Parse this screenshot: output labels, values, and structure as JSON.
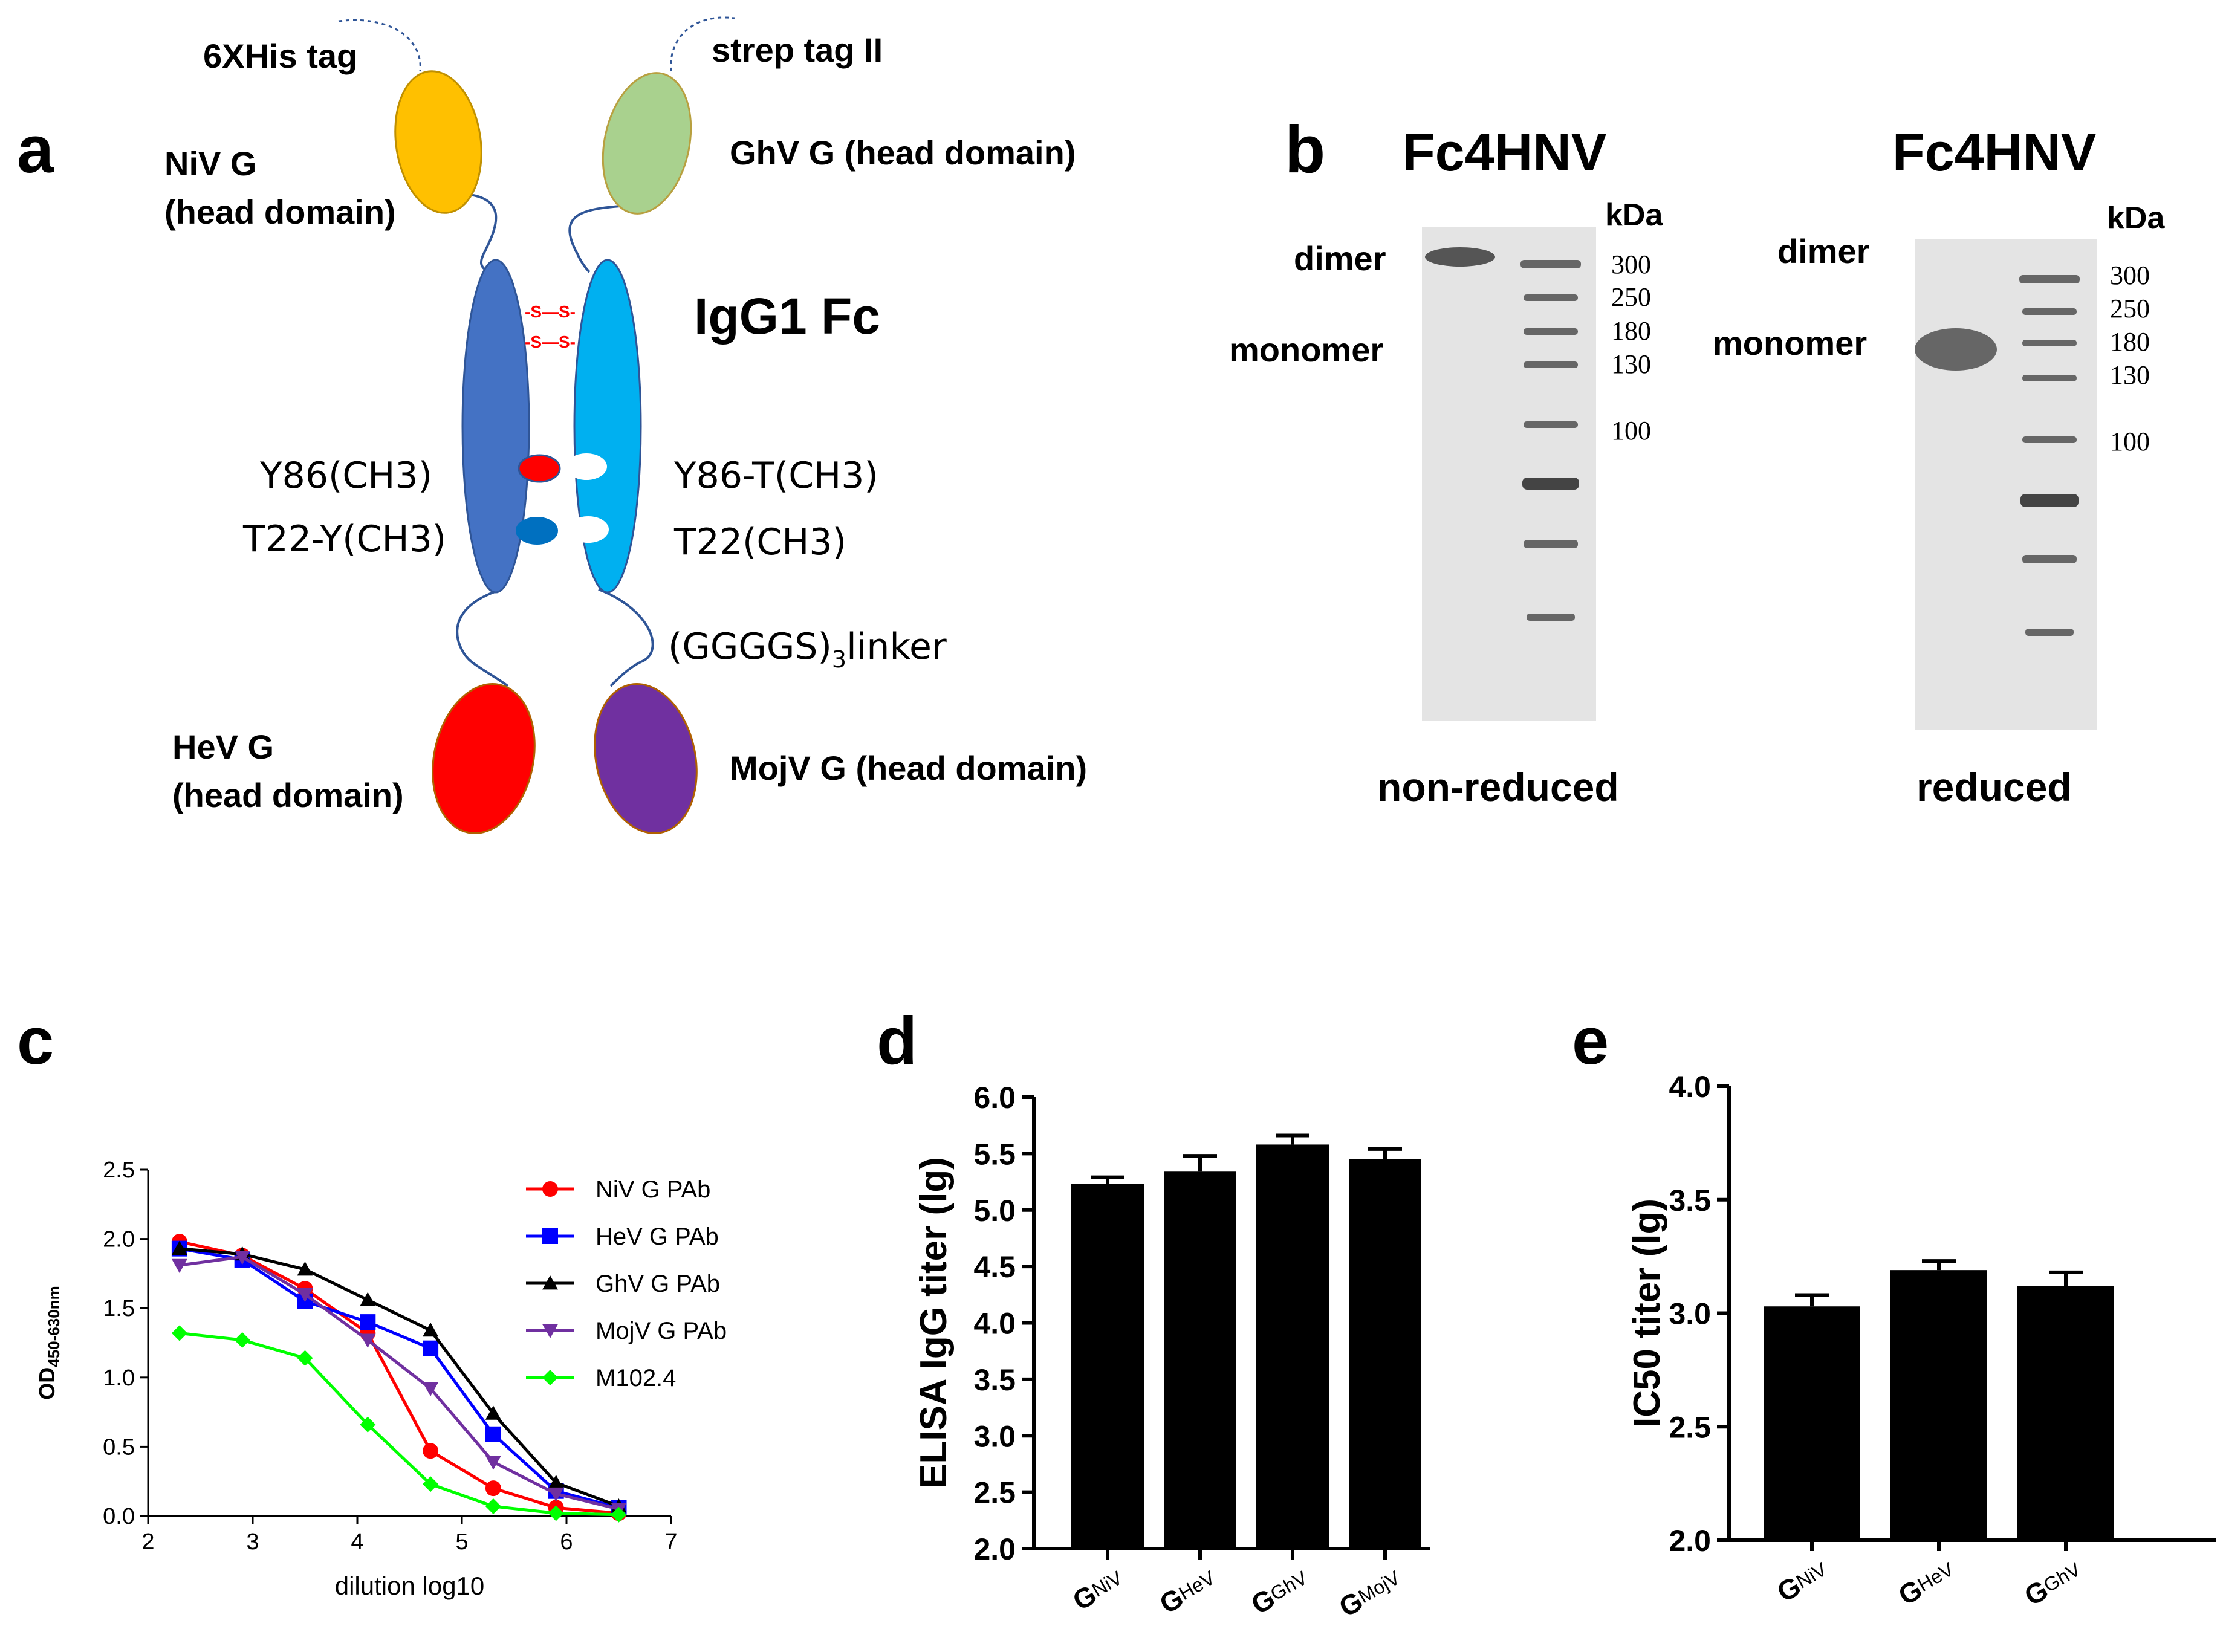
{
  "panel_letters": {
    "a": "a",
    "b": "b",
    "c": "c",
    "d": "d",
    "e": "e"
  },
  "panel_a": {
    "his_tag": "6XHis tag",
    "strep_tag": "strep tag II",
    "niv_line1": "NiV  G",
    "niv_line2": "(head domain)",
    "ghv": "GhV G (head domain)",
    "fc": "IgG1 Fc",
    "ss1": "-S—S-",
    "ss2": "-S—S-",
    "y86": "Y86(CH3)",
    "t22y": "T22-Y(CH3)",
    "y86t": "Y86-T(CH3)",
    "t22": "T22(CH3)",
    "linker_main": "(GGGGS)",
    "linker_sub": "3",
    "linker_tail": "linker",
    "hev_line1": "HeV G",
    "hev_line2": "(head domain)",
    "mojv": "MojV G (head domain)",
    "colors": {
      "niv": "#ffc000",
      "ghv": "#a9d18e",
      "hev": "#ff0000",
      "mojv": "#7030a0",
      "chainA": "#4472c4",
      "chainB": "#00b0f0",
      "ss": "#ff0000"
    }
  },
  "panel_b": {
    "left_title": "Fc4HNV",
    "right_title": "Fc4HNV",
    "kda": "kDa",
    "dimer": "dimer",
    "monomer": "monomer",
    "markers": [
      "300",
      "250",
      "180",
      "130",
      "100"
    ],
    "left_caption": "non-reduced",
    "right_caption": "reduced"
  },
  "chart_data": [
    {
      "type": "line",
      "panel": "c",
      "xlabel": "dilution log10",
      "ylabel_main": "OD",
      "ylabel_sub": "450-630nm",
      "xlim": [
        2,
        7
      ],
      "ylim": [
        0,
        2.5
      ],
      "xticks": [
        "2",
        "3",
        "4",
        "5",
        "6",
        "7"
      ],
      "yticks": [
        "0.0",
        "0.5",
        "1.0",
        "1.5",
        "2.0",
        "2.5"
      ],
      "x": [
        2.3,
        2.9,
        3.5,
        4.1,
        4.7,
        5.3,
        5.9,
        6.5
      ],
      "series": [
        {
          "name": "NiV G PAb",
          "color": "#ff0000",
          "marker": "circle",
          "values": [
            1.98,
            1.88,
            1.64,
            1.32,
            0.47,
            0.2,
            0.06,
            0.02
          ]
        },
        {
          "name": "HeV G PAb",
          "color": "#0000ff",
          "marker": "square",
          "values": [
            1.93,
            1.85,
            1.55,
            1.4,
            1.21,
            0.59,
            0.18,
            0.06
          ]
        },
        {
          "name": "GhV G PAb",
          "color": "#000000",
          "marker": "triangle-up",
          "values": [
            1.93,
            1.89,
            1.78,
            1.56,
            1.34,
            0.74,
            0.24,
            0.07
          ]
        },
        {
          "name": "MojV G  PAb",
          "color": "#7030a0",
          "marker": "triangle-down",
          "values": [
            1.81,
            1.87,
            1.6,
            1.27,
            0.92,
            0.39,
            0.16,
            0.05
          ]
        },
        {
          "name": "M102.4",
          "color": "#00ff00",
          "marker": "diamond",
          "values": [
            1.32,
            1.27,
            1.14,
            0.66,
            0.23,
            0.07,
            0.02,
            0.01
          ]
        }
      ]
    },
    {
      "type": "bar",
      "panel": "d",
      "ylabel": "ELISA IgG titer (lg)",
      "ylim": [
        2.0,
        6.0
      ],
      "yticks": [
        "2.0",
        "2.5",
        "3.0",
        "3.5",
        "4.0",
        "4.5",
        "5.0",
        "5.5",
        "6.0"
      ],
      "categories": [
        {
          "main": "G",
          "sub": "NiV"
        },
        {
          "main": "G",
          "sub": "HeV"
        },
        {
          "main": "G",
          "sub": "GhV"
        },
        {
          "main": "G",
          "sub": "MojV"
        }
      ],
      "values": [
        5.23,
        5.34,
        5.58,
        5.45
      ],
      "errors": [
        0.06,
        0.14,
        0.08,
        0.09
      ]
    },
    {
      "type": "bar",
      "panel": "e",
      "ylabel": "IC50 titer (lg)",
      "ylim": [
        2.0,
        4.0
      ],
      "yticks": [
        "2.0",
        "2.5",
        "3.0",
        "3.5",
        "4.0"
      ],
      "categories": [
        {
          "main": "G",
          "sub": "NiV"
        },
        {
          "main": "G",
          "sub": "HeV"
        },
        {
          "main": "G",
          "sub": "GhV"
        }
      ],
      "values": [
        3.03,
        3.19,
        3.12
      ],
      "errors": [
        0.05,
        0.04,
        0.06
      ]
    }
  ]
}
